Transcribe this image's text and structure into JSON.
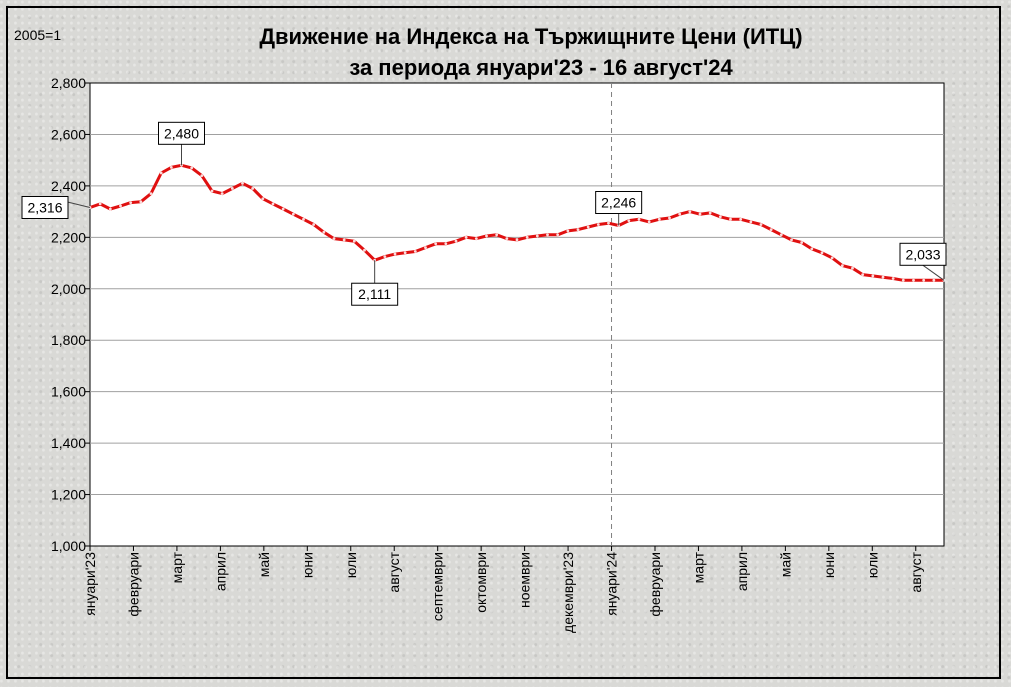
{
  "chart_data": {
    "type": "line",
    "title_line1": "Движение на Индекса на Тържищните Цени (ИТЦ)",
    "title_line2": "за периода януари'23  - 16 август'24",
    "unit_label": "2005=1",
    "ylim": [
      1.0,
      2.8
    ],
    "y_ticks": [
      1.0,
      1.2,
      1.4,
      1.6,
      1.8,
      2.0,
      2.2,
      2.4,
      2.6,
      2.8
    ],
    "y_tick_labels": [
      "1,000",
      "1,200",
      "1,400",
      "1,600",
      "1,800",
      "2,000",
      "2,200",
      "2,400",
      "2,600",
      "2,800"
    ],
    "x_month_labels": [
      "януари'23",
      "февруари",
      "март",
      "април",
      "май",
      "юни",
      "юли",
      "август",
      "септември",
      "октомври",
      "ноември",
      "декември'23",
      "януари'24",
      "февруари",
      "март",
      "април",
      "май",
      "юни",
      "юли",
      "август"
    ],
    "grid": true,
    "series": [
      {
        "values": [
          2.316,
          2.33,
          2.31,
          2.322,
          2.335,
          2.338,
          2.37,
          2.45,
          2.472,
          2.48,
          2.47,
          2.44,
          2.38,
          2.37,
          2.39,
          2.41,
          2.39,
          2.35,
          2.33,
          2.31,
          2.29,
          2.27,
          2.25,
          2.22,
          2.195,
          2.19,
          2.185,
          2.15,
          2.111,
          2.125,
          2.135,
          2.14,
          2.145,
          2.16,
          2.175,
          2.175,
          2.185,
          2.2,
          2.195,
          2.205,
          2.21,
          2.195,
          2.19,
          2.2,
          2.205,
          2.21,
          2.21,
          2.225,
          2.23,
          2.24,
          2.25,
          2.255,
          2.246,
          2.265,
          2.27,
          2.26,
          2.27,
          2.275,
          2.29,
          2.3,
          2.29,
          2.295,
          2.28,
          2.27,
          2.27,
          2.26,
          2.25,
          2.23,
          2.21,
          2.19,
          2.18,
          2.155,
          2.14,
          2.12,
          2.09,
          2.08,
          2.055,
          2.05,
          2.045,
          2.04,
          2.033,
          2.033,
          2.033,
          2.033,
          2.033
        ]
      }
    ],
    "callouts": [
      {
        "label": "2,316",
        "index": 0
      },
      {
        "label": "2,480",
        "index": 9
      },
      {
        "label": "2,111",
        "index": 28
      },
      {
        "label": "2,246",
        "index": 52
      },
      {
        "label": "2,033",
        "index": 84
      }
    ],
    "divider_month_index": 12,
    "colors": {
      "line": "#e01010",
      "grid": "#a0a0a0",
      "plot_bg": "#ffffff",
      "divider": "#808080"
    }
  }
}
